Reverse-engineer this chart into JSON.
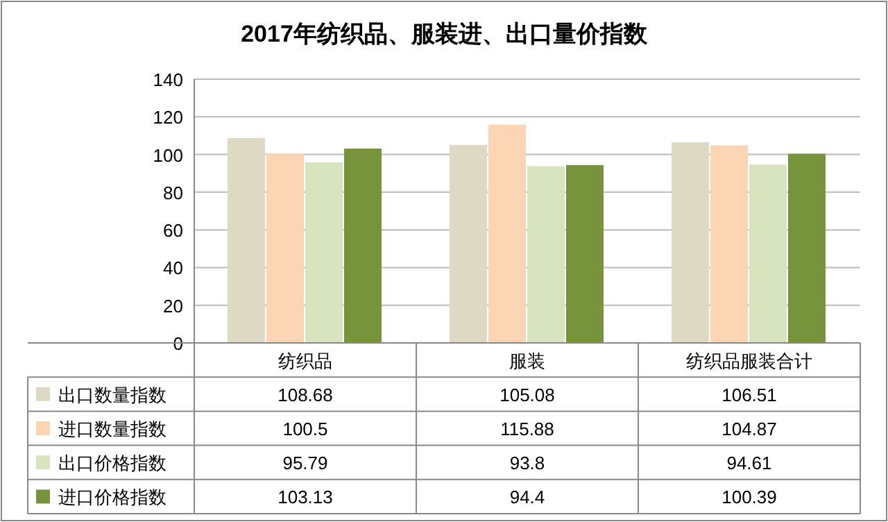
{
  "chart_data": {
    "type": "bar",
    "title": "2017年纺织品、服装进、出口量价指数",
    "categories": [
      "纺织品",
      "服装",
      "纺织品服装合计"
    ],
    "series": [
      {
        "name": "出口数量指数",
        "color": "#ddd9c3",
        "values": [
          108.68,
          105.08,
          106.51
        ]
      },
      {
        "name": "进口数量指数",
        "color": "#fcd5b5",
        "values": [
          100.5,
          115.88,
          104.87
        ]
      },
      {
        "name": "出口价格指数",
        "color": "#d7e4bd",
        "values": [
          95.79,
          93.8,
          94.61
        ]
      },
      {
        "name": "进口价格指数",
        "color": "#77933c",
        "values": [
          103.13,
          94.4,
          100.39
        ]
      }
    ],
    "ylim": [
      0,
      140
    ],
    "yticks": [
      0,
      20,
      40,
      60,
      80,
      100,
      120,
      140
    ],
    "grid": "y",
    "legend": "bottom left",
    "data_labels": true
  }
}
